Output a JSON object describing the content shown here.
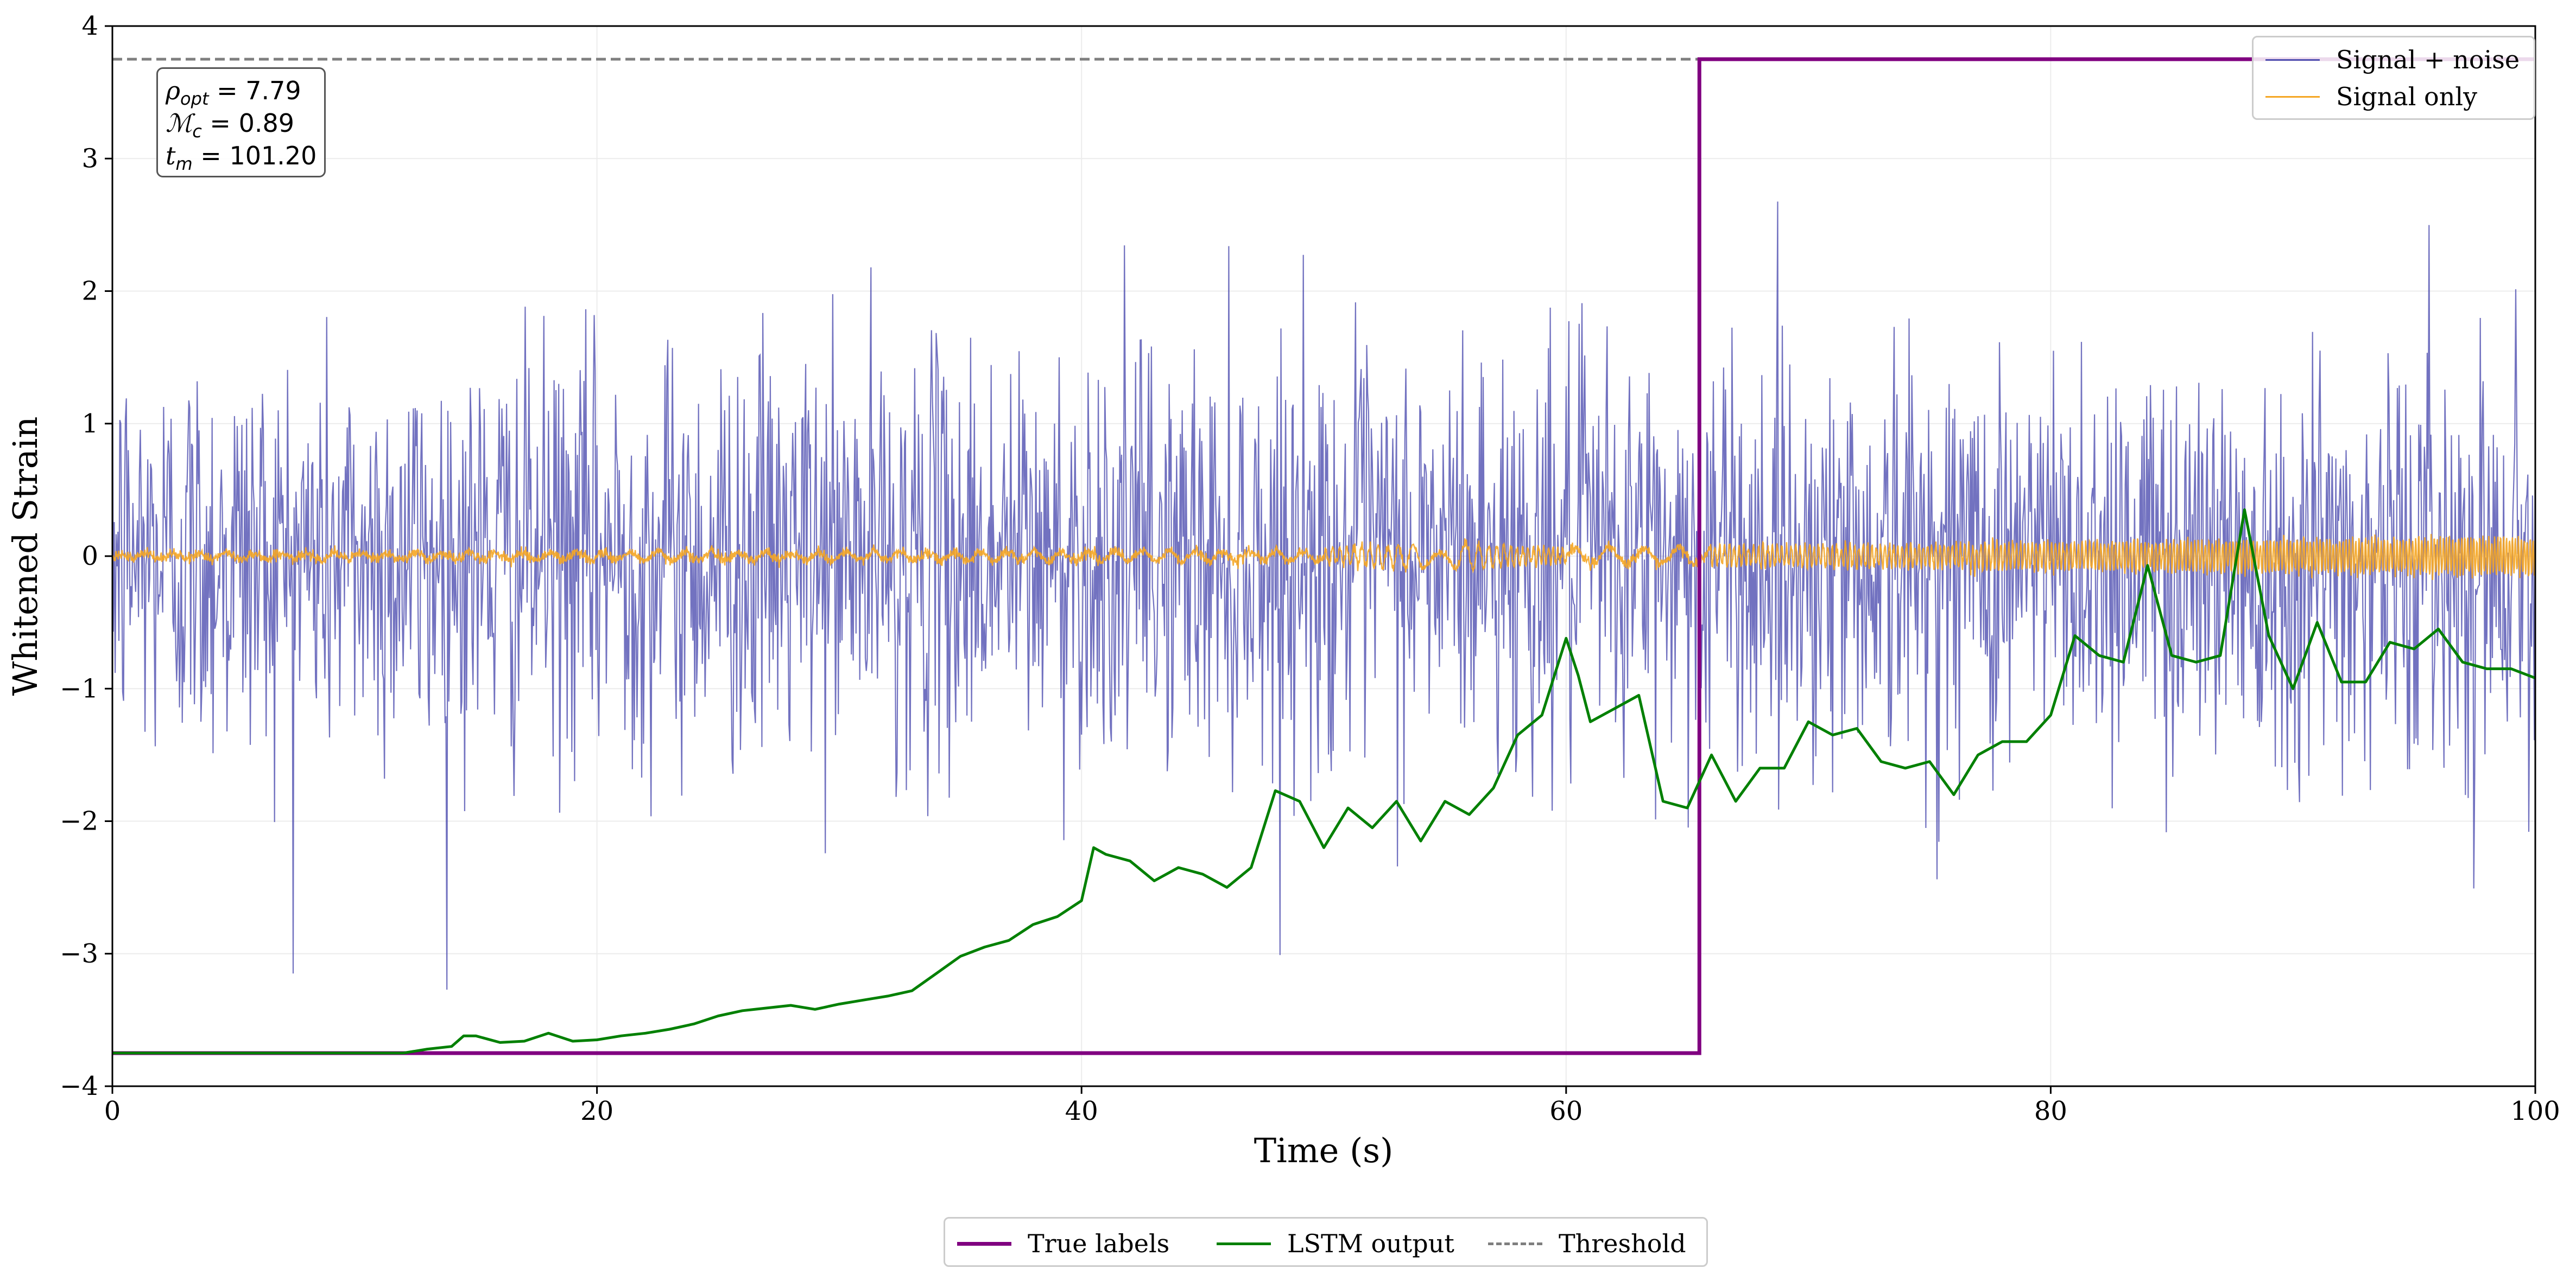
{
  "chart_data": {
    "type": "line",
    "title": "",
    "xlabel": "Time (s)",
    "ylabel": "Whitened Strain",
    "xlim": [
      0,
      100
    ],
    "ylim": [
      -4,
      4
    ],
    "xticks": [
      0,
      20,
      40,
      60,
      80,
      100
    ],
    "yticks": [
      -4,
      -3,
      -2,
      -1,
      0,
      1,
      2,
      3,
      4
    ],
    "x_tick_labels": [
      "0",
      "20",
      "40",
      "60",
      "80",
      "100"
    ],
    "y_tick_labels": [
      "−4",
      "−3",
      "−2",
      "−1",
      "0",
      "1",
      "2",
      "3",
      "4"
    ],
    "grid": true,
    "threshold": 3.75,
    "true_labels": {
      "x": [
        0,
        65.5,
        65.5,
        100
      ],
      "y": [
        -3.75,
        -3.75,
        3.75,
        3.75
      ]
    },
    "lstm_output": {
      "x": [
        0,
        12,
        13,
        14,
        14.5,
        15,
        16,
        17,
        18,
        19,
        20,
        21,
        22,
        23,
        24,
        25,
        26,
        27,
        28,
        29,
        30,
        31,
        32,
        33,
        34,
        35,
        36,
        37,
        38,
        39,
        40,
        40.5,
        41,
        42,
        43,
        44,
        45,
        46,
        47,
        48,
        49,
        50,
        51,
        52,
        53,
        54,
        55,
        56,
        57,
        58,
        59,
        60,
        60.5,
        61,
        62,
        63,
        64,
        65,
        66,
        67,
        68,
        69,
        70,
        71,
        72,
        73,
        74,
        75,
        76,
        77,
        78,
        79,
        80,
        81,
        82,
        83,
        84,
        85,
        86,
        87,
        88,
        89,
        90,
        91,
        92,
        93,
        94,
        95,
        96,
        97,
        98,
        99,
        100
      ],
      "y": [
        -3.75,
        -3.75,
        -3.72,
        -3.7,
        -3.62,
        -3.62,
        -3.67,
        -3.66,
        -3.6,
        -3.66,
        -3.65,
        -3.62,
        -3.6,
        -3.57,
        -3.53,
        -3.47,
        -3.43,
        -3.41,
        -3.39,
        -3.42,
        -3.38,
        -3.35,
        -3.32,
        -3.28,
        -3.15,
        -3.02,
        -2.95,
        -2.9,
        -2.78,
        -2.72,
        -2.6,
        -2.2,
        -2.25,
        -2.3,
        -2.45,
        -2.35,
        -2.4,
        -2.5,
        -2.35,
        -1.77,
        -1.85,
        -2.2,
        -1.9,
        -2.05,
        -1.85,
        -2.15,
        -1.85,
        -1.95,
        -1.75,
        -1.35,
        -1.2,
        -0.62,
        -0.9,
        -1.25,
        -1.15,
        -1.05,
        -1.85,
        -1.9,
        -1.5,
        -1.85,
        -1.6,
        -1.6,
        -1.25,
        -1.35,
        -1.3,
        -1.55,
        -1.6,
        -1.55,
        -1.8,
        -1.5,
        -1.4,
        -1.4,
        -1.2,
        -0.6,
        -0.75,
        -0.8,
        -0.07,
        -0.75,
        -0.8,
        -0.75,
        0.35,
        -0.6,
        -1.0,
        -0.5,
        -0.95,
        -0.95,
        -0.65,
        -0.7,
        -0.55,
        -0.8,
        -0.85,
        -0.85,
        -0.92
      ]
    },
    "signal_noise_sigma": 0.78,
    "signal_only_amplitude_range": [
      0.02,
      0.14
    ],
    "series": [
      {
        "name": "Signal + noise",
        "color": "#4f4fb0"
      },
      {
        "name": "Signal only",
        "color": "#f5a623"
      },
      {
        "name": "True labels",
        "color": "#800080"
      },
      {
        "name": "LSTM output",
        "color": "#008000"
      },
      {
        "name": "Threshold",
        "color": "#7f7f7f"
      }
    ],
    "annotation": {
      "rho_sym": "ρ",
      "rho_sub": "opt",
      "rho_val": " = 7.79",
      "mc_sym": "ℳ",
      "mc_sub": "c",
      "mc_val": " = 0.89",
      "tm_sym": "t",
      "tm_sub": "m",
      "tm_val": " = 101.20"
    },
    "legend_upper_right": [
      "Signal + noise",
      "Signal only"
    ],
    "legend_bottom": [
      "True labels",
      "LSTM output",
      "Threshold"
    ]
  }
}
